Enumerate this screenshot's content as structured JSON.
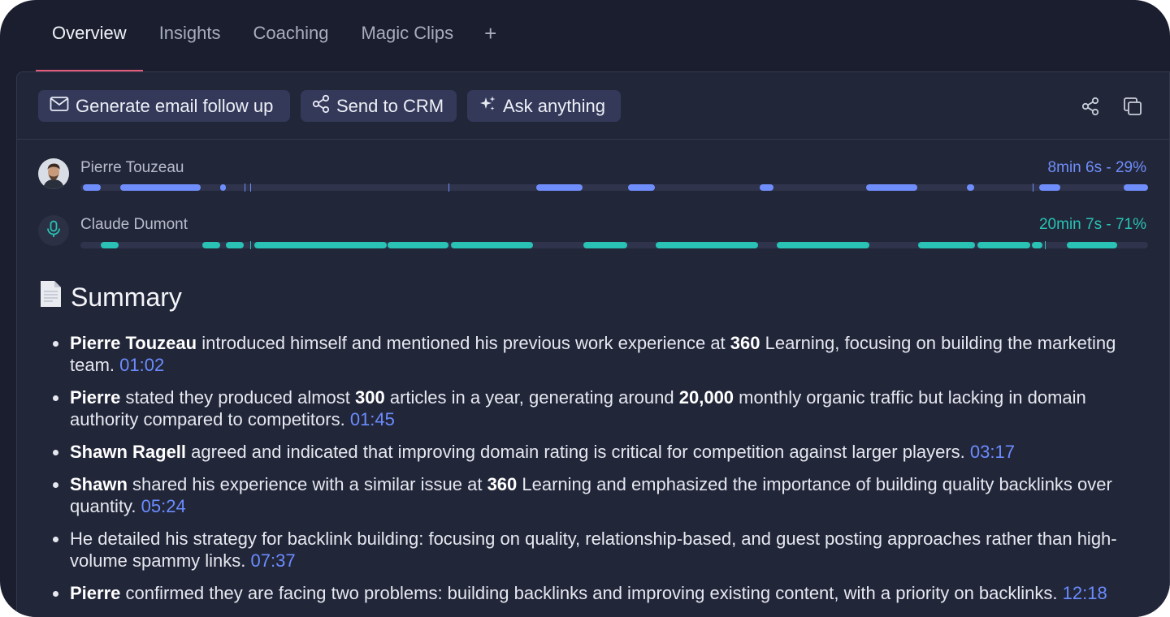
{
  "tabs": [
    {
      "label": "Overview",
      "active": true
    },
    {
      "label": "Insights",
      "active": false
    },
    {
      "label": "Coaching",
      "active": false
    },
    {
      "label": "Magic Clips",
      "active": false
    }
  ],
  "tab_add_label": "+",
  "toolbar": {
    "email_label": "Generate email follow up",
    "crm_label": "Send to CRM",
    "ask_label": "Ask anything"
  },
  "speakers": [
    {
      "name": "Pierre Touzeau",
      "stat": "8min 6s - 29%",
      "color": "#6f8efb",
      "segments": [
        [
          0.2,
          1.9
        ],
        [
          3.7,
          11.3
        ],
        [
          13.1,
          13.6
        ],
        [
          15.4,
          15.6
        ],
        [
          15.9,
          16.1
        ],
        [
          34.5,
          34.6
        ],
        [
          42.7,
          47.0
        ],
        [
          51.3,
          53.8
        ],
        [
          63.6,
          64.9
        ],
        [
          73.6,
          78.4
        ],
        [
          83.0,
          83.7
        ],
        [
          89.2,
          89.3
        ],
        [
          89.8,
          91.8
        ],
        [
          97.7,
          100
        ]
      ]
    },
    {
      "name": "Claude Dumont",
      "stat": "20min 7s - 71%",
      "color": "#29c2b4",
      "segments": [
        [
          1.9,
          3.6
        ],
        [
          11.4,
          13.1
        ],
        [
          13.6,
          15.3
        ],
        [
          15.9,
          16.1
        ],
        [
          16.3,
          28.7
        ],
        [
          28.8,
          34.5
        ],
        [
          34.7,
          42.4
        ],
        [
          47.1,
          51.2
        ],
        [
          53.9,
          63.5
        ],
        [
          65.2,
          73.9
        ],
        [
          78.5,
          83.8
        ],
        [
          84.0,
          89.0
        ],
        [
          89.1,
          90.1
        ],
        [
          90.3,
          90.4
        ],
        [
          92.4,
          97.1
        ]
      ]
    }
  ],
  "summary": {
    "title": "Summary",
    "items": [
      {
        "bold": "Pierre Touzeau",
        "text": " introduced himself and mentioned his previous work experience at ",
        "bold2": "360",
        "text2": " Learning, focusing on building the marketing team. ",
        "time": "01:02"
      },
      {
        "bold": "Pierre",
        "text": " stated they produced almost ",
        "bold2": "300",
        "text2": " articles in a year, generating around ",
        "bold3": "20,000",
        "text3": " monthly organic traffic but lacking in domain authority compared to competitors. ",
        "time": "01:45"
      },
      {
        "bold": "Shawn Ragell",
        "text": " agreed and indicated that improving domain rating is critical for competition against larger players. ",
        "time": "03:17"
      },
      {
        "bold": "Shawn",
        "text": " shared his experience with a similar issue at ",
        "bold2": "360",
        "text2": " Learning and emphasized the importance of building quality backlinks over quantity. ",
        "time": "05:24"
      },
      {
        "text": "He detailed his strategy for backlink building: focusing on quality, relationship-based, and guest posting approaches rather than high-volume spammy links. ",
        "time": "07:37"
      },
      {
        "bold": "Pierre",
        "text": " confirmed they are facing two problems: building backlinks and improving existing content, with a priority on backlinks. ",
        "time": "12:18"
      }
    ]
  }
}
